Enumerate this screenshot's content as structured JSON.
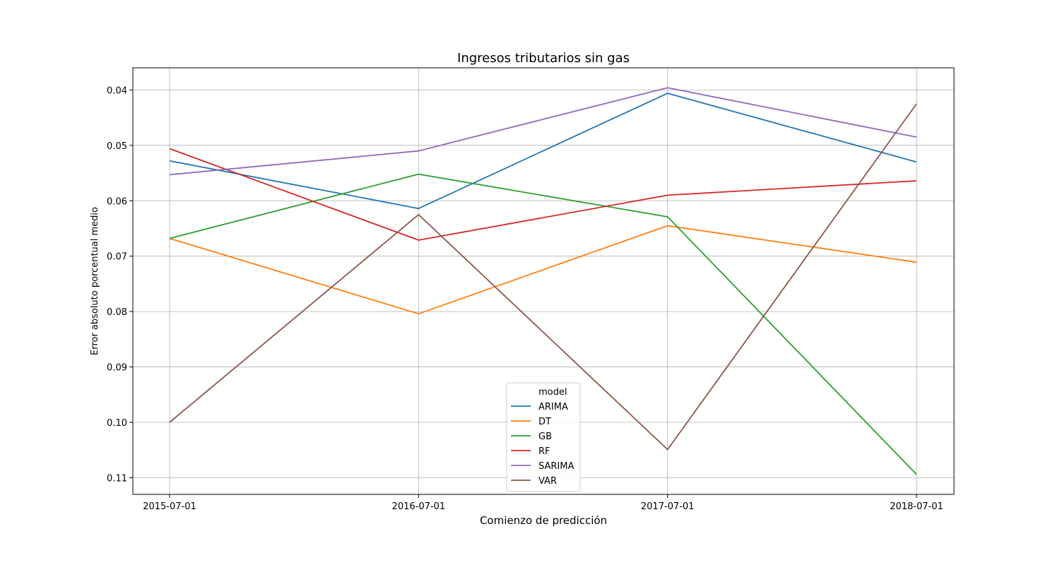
{
  "chart_data": {
    "type": "line",
    "title": "Ingresos tributarios sin gas",
    "xlabel": "Comienzo de predicción",
    "ylabel": "Error absoluto porcentual medio",
    "x": [
      "2015-07-01",
      "2016-07-01",
      "2017-07-01",
      "2018-07-01"
    ],
    "ylim": [
      0.036,
      0.113
    ],
    "y_inverted": true,
    "yticks": [
      0.04,
      0.05,
      0.06,
      0.07,
      0.08,
      0.09,
      0.1,
      0.11
    ],
    "ytick_labels": [
      "0.04",
      "0.05",
      "0.06",
      "0.07",
      "0.08",
      "0.09",
      "0.10",
      "0.11"
    ],
    "grid": true,
    "legend": {
      "title": "model",
      "placement": "bottom-center"
    },
    "series": [
      {
        "name": "ARIMA",
        "color": "#1f77b4",
        "values": [
          0.0528,
          0.0614,
          0.0406,
          0.053
        ]
      },
      {
        "name": "DT",
        "color": "#ff7f0e",
        "values": [
          0.0668,
          0.0804,
          0.0645,
          0.0711
        ]
      },
      {
        "name": "GB",
        "color": "#2ca02c",
        "values": [
          0.0668,
          0.0552,
          0.0629,
          0.1094
        ]
      },
      {
        "name": "RF",
        "color": "#d62728",
        "values": [
          0.0506,
          0.0671,
          0.059,
          0.0564
        ]
      },
      {
        "name": "SARIMA",
        "color": "#9467bd",
        "values": [
          0.0553,
          0.051,
          0.0396,
          0.0485
        ]
      },
      {
        "name": "VAR",
        "color": "#8c564b",
        "values": [
          0.1,
          0.0625,
          0.1049,
          0.0425
        ]
      }
    ]
  }
}
